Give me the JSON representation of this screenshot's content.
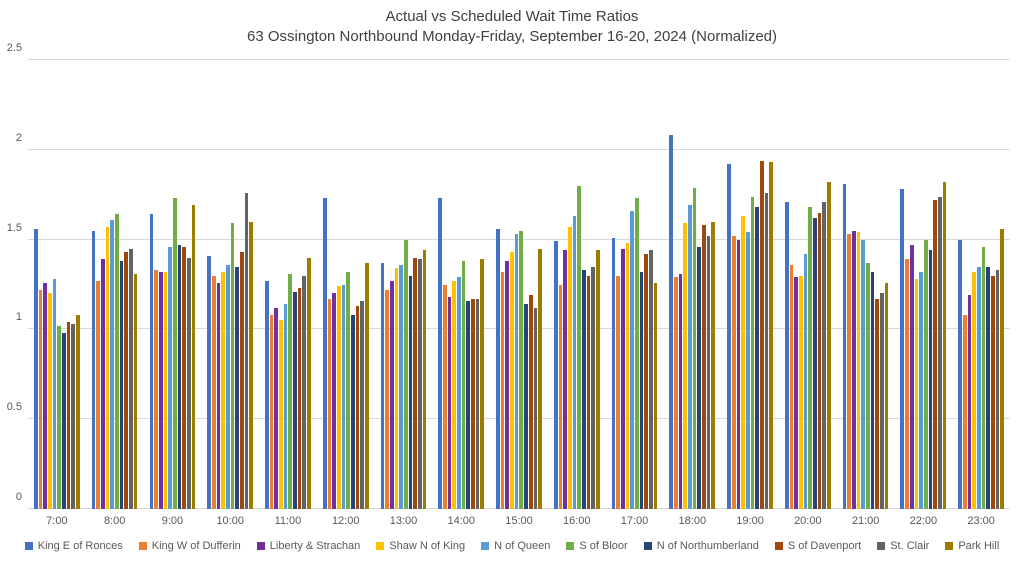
{
  "title": {
    "line1": "Actual vs Scheduled Wait Time Ratios",
    "line2": "63 Ossington  Northbound Monday-Friday, September 16-20, 2024 (Normalized)"
  },
  "chart_data": {
    "type": "bar",
    "grouped": true,
    "title": "Actual vs Scheduled Wait Time Ratios",
    "subtitle": "63 Ossington  Northbound Monday-Friday, September 16-20, 2024 (Normalized)",
    "xlabel": "",
    "ylabel": "",
    "ylim": [
      0,
      2.5
    ],
    "yticks": [
      0,
      0.5,
      1,
      1.5,
      2,
      2.5
    ],
    "ytick_labels": [
      "0",
      "0.5",
      "1",
      "1.5",
      "2",
      "2.5"
    ],
    "grid": "horizontal",
    "legend_position": "bottom",
    "background_color": "#ffffff",
    "gridline_color": "#d9d9d9",
    "axis_text_color": "#595959",
    "title_color": "#404040",
    "categories": [
      "7:00",
      "8:00",
      "9:00",
      "10:00",
      "11:00",
      "12:00",
      "13:00",
      "14:00",
      "15:00",
      "16:00",
      "17:00",
      "18:00",
      "19:00",
      "20:00",
      "21:00",
      "22:00",
      "23:00"
    ],
    "series": [
      {
        "name": "King E of Ronces",
        "color": "#4472C4",
        "values": [
          1.56,
          1.55,
          1.64,
          1.41,
          1.27,
          1.73,
          1.37,
          1.73,
          1.56,
          1.49,
          1.51,
          2.08,
          1.92,
          1.71,
          1.81,
          1.78,
          1.5
        ]
      },
      {
        "name": "King W of Dufferin",
        "color": "#ED7D31",
        "values": [
          1.22,
          1.27,
          1.33,
          1.3,
          1.08,
          1.17,
          1.22,
          1.25,
          1.32,
          1.25,
          1.3,
          1.29,
          1.52,
          1.36,
          1.53,
          1.39,
          1.08
        ]
      },
      {
        "name": "Liberty & Strachan",
        "color": "#7030A0",
        "values": [
          1.26,
          1.39,
          1.32,
          1.26,
          1.12,
          1.2,
          1.27,
          1.18,
          1.38,
          1.44,
          1.45,
          1.31,
          1.5,
          1.29,
          1.55,
          1.47,
          1.19
        ]
      },
      {
        "name": "Shaw N of King",
        "color": "#FFC000",
        "values": [
          1.2,
          1.57,
          1.32,
          1.32,
          1.05,
          1.24,
          1.34,
          1.27,
          1.43,
          1.57,
          1.48,
          1.59,
          1.63,
          1.3,
          1.54,
          1.28,
          1.32
        ]
      },
      {
        "name": "N of Queen",
        "color": "#5B9BD5",
        "values": [
          1.28,
          1.61,
          1.46,
          1.36,
          1.14,
          1.25,
          1.36,
          1.29,
          1.53,
          1.63,
          1.66,
          1.69,
          1.54,
          1.42,
          1.5,
          1.32,
          1.35
        ]
      },
      {
        "name": "S of Bloor",
        "color": "#70AD47",
        "values": [
          1.02,
          1.64,
          1.73,
          1.59,
          1.31,
          1.32,
          1.5,
          1.38,
          1.55,
          1.8,
          1.73,
          1.79,
          1.74,
          1.68,
          1.37,
          1.5,
          1.46
        ]
      },
      {
        "name": "N of Northumberland",
        "color": "#264478",
        "values": [
          0.98,
          1.38,
          1.47,
          1.35,
          1.21,
          1.08,
          1.3,
          1.16,
          1.14,
          1.33,
          1.32,
          1.46,
          1.68,
          1.62,
          1.32,
          1.44,
          1.35
        ]
      },
      {
        "name": "S of Davenport",
        "color": "#9E480E",
        "values": [
          1.04,
          1.43,
          1.46,
          1.43,
          1.23,
          1.13,
          1.4,
          1.17,
          1.19,
          1.3,
          1.42,
          1.58,
          1.94,
          1.65,
          1.17,
          1.72,
          1.3
        ]
      },
      {
        "name": "St. Clair",
        "color": "#636363",
        "values": [
          1.03,
          1.45,
          1.4,
          1.76,
          1.3,
          1.16,
          1.39,
          1.17,
          1.12,
          1.35,
          1.44,
          1.52,
          1.76,
          1.71,
          1.2,
          1.74,
          1.33
        ]
      },
      {
        "name": "Park Hill",
        "color": "#9E7C00",
        "values": [
          1.08,
          1.31,
          1.69,
          1.6,
          1.4,
          1.37,
          1.44,
          1.39,
          1.45,
          1.44,
          1.26,
          1.6,
          1.93,
          1.82,
          1.26,
          1.82,
          1.56
        ]
      }
    ]
  }
}
